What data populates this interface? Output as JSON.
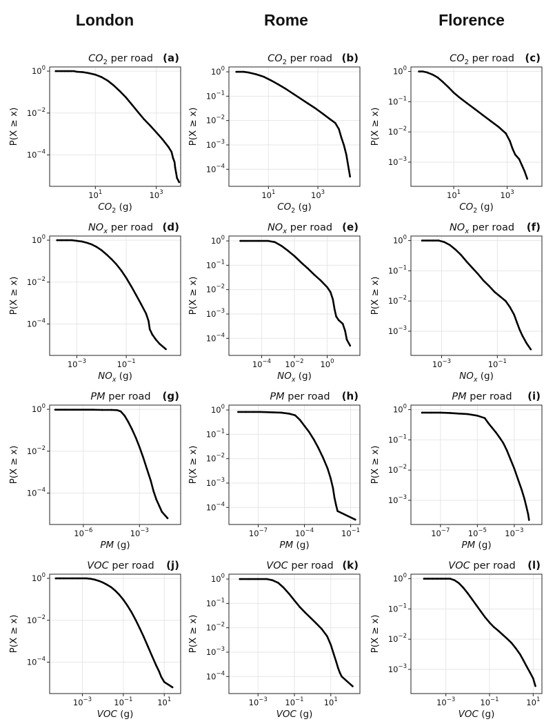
{
  "figure": {
    "columns": [
      "London",
      "Rome",
      "Florence"
    ],
    "ylabel": "P(X ≥ x)",
    "title_suffix": "per road",
    "unit": "(g)"
  },
  "chart_data": [
    {
      "panel": "a",
      "city": "London",
      "pollutant": "CO2",
      "type": "scatter",
      "xlog": [
        -0.5,
        3.8
      ],
      "ylog": [
        -5.5,
        0.2
      ],
      "xticks": [
        1,
        3
      ],
      "yticks": [
        0,
        -2,
        -4
      ],
      "points": [
        [
          -0.3,
          0
        ],
        [
          -0.1,
          0
        ],
        [
          0,
          0
        ],
        [
          0.1,
          0
        ],
        [
          0.2,
          0
        ],
        [
          0.3,
          0
        ],
        [
          0.4,
          -0.03
        ],
        [
          0.6,
          -0.05
        ],
        [
          0.8,
          -0.1
        ],
        [
          1.0,
          -0.17
        ],
        [
          1.2,
          -0.28
        ],
        [
          1.4,
          -0.45
        ],
        [
          1.6,
          -0.68
        ],
        [
          1.8,
          -0.95
        ],
        [
          2.0,
          -1.25
        ],
        [
          2.2,
          -1.6
        ],
        [
          2.4,
          -1.95
        ],
        [
          2.6,
          -2.3
        ],
        [
          2.8,
          -2.6
        ],
        [
          3.0,
          -2.92
        ],
        [
          3.2,
          -3.25
        ],
        [
          3.4,
          -3.62
        ],
        [
          3.5,
          -3.85
        ],
        [
          3.55,
          -4.15
        ],
        [
          3.6,
          -4.35
        ],
        [
          3.62,
          -4.6
        ],
        [
          3.65,
          -4.85
        ],
        [
          3.68,
          -5.1
        ],
        [
          3.75,
          -5.3
        ]
      ]
    },
    {
      "panel": "b",
      "city": "Rome",
      "pollutant": "CO2",
      "type": "scatter",
      "xlog": [
        -0.6,
        4.7
      ],
      "ylog": [
        -4.7,
        0.2
      ],
      "xticks": [
        1,
        3
      ],
      "yticks": [
        0,
        -1,
        -2,
        -3,
        -4
      ],
      "points": [
        [
          -0.3,
          0
        ],
        [
          0,
          0
        ],
        [
          0.2,
          -0.03
        ],
        [
          0.5,
          -0.1
        ],
        [
          0.8,
          -0.2
        ],
        [
          1.1,
          -0.35
        ],
        [
          1.4,
          -0.52
        ],
        [
          1.7,
          -0.7
        ],
        [
          2.0,
          -0.9
        ],
        [
          2.3,
          -1.1
        ],
        [
          2.6,
          -1.3
        ],
        [
          2.9,
          -1.5
        ],
        [
          3.2,
          -1.72
        ],
        [
          3.5,
          -1.95
        ],
        [
          3.7,
          -2.1
        ],
        [
          3.85,
          -2.35
        ],
        [
          3.95,
          -2.7
        ],
        [
          4.05,
          -3.0
        ],
        [
          4.1,
          -3.2
        ],
        [
          4.15,
          -3.4
        ],
        [
          4.2,
          -3.7
        ],
        [
          4.25,
          -4.0
        ],
        [
          4.3,
          -4.3
        ]
      ]
    },
    {
      "panel": "c",
      "city": "Florence",
      "pollutant": "CO2",
      "type": "scatter",
      "xlog": [
        -0.6,
        4.3
      ],
      "ylog": [
        -3.8,
        0.15
      ],
      "xticks": [
        1,
        3
      ],
      "yticks": [
        0,
        -1,
        -2,
        -3
      ],
      "points": [
        [
          -0.3,
          0
        ],
        [
          -0.15,
          0
        ],
        [
          0,
          -0.03
        ],
        [
          0.2,
          -0.1
        ],
        [
          0.4,
          -0.2
        ],
        [
          0.6,
          -0.35
        ],
        [
          0.8,
          -0.52
        ],
        [
          1.0,
          -0.7
        ],
        [
          1.2,
          -0.85
        ],
        [
          1.5,
          -1.05
        ],
        [
          1.8,
          -1.25
        ],
        [
          2.1,
          -1.45
        ],
        [
          2.4,
          -1.65
        ],
        [
          2.7,
          -1.85
        ],
        [
          2.95,
          -2.05
        ],
        [
          3.1,
          -2.3
        ],
        [
          3.2,
          -2.55
        ],
        [
          3.3,
          -2.75
        ],
        [
          3.45,
          -2.9
        ],
        [
          3.55,
          -3.1
        ],
        [
          3.65,
          -3.3
        ],
        [
          3.75,
          -3.55
        ]
      ]
    },
    {
      "panel": "d",
      "city": "London",
      "pollutant": "NOx",
      "type": "scatter",
      "xlog": [
        -4.1,
        1.2
      ],
      "ylog": [
        -5.5,
        0.2
      ],
      "xticks": [
        -3,
        -1
      ],
      "yticks": [
        0,
        -2,
        -4
      ],
      "points": [
        [
          -3.8,
          0
        ],
        [
          -3.6,
          0
        ],
        [
          -3.4,
          0
        ],
        [
          -3.2,
          0
        ],
        [
          -3.0,
          -0.03
        ],
        [
          -2.8,
          -0.06
        ],
        [
          -2.6,
          -0.12
        ],
        [
          -2.4,
          -0.2
        ],
        [
          -2.2,
          -0.32
        ],
        [
          -2.0,
          -0.48
        ],
        [
          -1.8,
          -0.68
        ],
        [
          -1.6,
          -0.9
        ],
        [
          -1.4,
          -1.15
        ],
        [
          -1.2,
          -1.45
        ],
        [
          -1.0,
          -1.8
        ],
        [
          -0.8,
          -2.2
        ],
        [
          -0.6,
          -2.62
        ],
        [
          -0.4,
          -3.05
        ],
        [
          -0.2,
          -3.5
        ],
        [
          -0.1,
          -3.85
        ],
        [
          -0.05,
          -4.25
        ],
        [
          0.05,
          -4.5
        ],
        [
          0.2,
          -4.75
        ],
        [
          0.35,
          -4.95
        ],
        [
          0.6,
          -5.2
        ]
      ]
    },
    {
      "panel": "e",
      "city": "Rome",
      "pollutant": "NOx",
      "type": "scatter",
      "xlog": [
        -6.0,
        2.0
      ],
      "ylog": [
        -4.7,
        0.2
      ],
      "xticks": [
        -4,
        -2,
        0
      ],
      "yticks": [
        0,
        -1,
        -2,
        -3,
        -4
      ],
      "points": [
        [
          -5.3,
          0
        ],
        [
          -4.2,
          0
        ],
        [
          -3.6,
          0
        ],
        [
          -3.2,
          -0.05
        ],
        [
          -2.8,
          -0.2
        ],
        [
          -2.4,
          -0.4
        ],
        [
          -2.0,
          -0.62
        ],
        [
          -1.6,
          -0.88
        ],
        [
          -1.2,
          -1.12
        ],
        [
          -0.8,
          -1.38
        ],
        [
          -0.4,
          -1.62
        ],
        [
          0.0,
          -1.9
        ],
        [
          0.2,
          -2.1
        ],
        [
          0.35,
          -2.4
        ],
        [
          0.45,
          -2.8
        ],
        [
          0.55,
          -3.1
        ],
        [
          0.7,
          -3.25
        ],
        [
          0.95,
          -3.4
        ],
        [
          1.1,
          -3.7
        ],
        [
          1.2,
          -4.05
        ],
        [
          1.4,
          -4.3
        ]
      ]
    },
    {
      "panel": "f",
      "city": "Florence",
      "pollutant": "NOx",
      "type": "scatter",
      "xlog": [
        -4.1,
        0.6
      ],
      "ylog": [
        -3.8,
        0.15
      ],
      "xticks": [
        -3,
        -1
      ],
      "yticks": [
        0,
        -1,
        -2,
        -3
      ],
      "points": [
        [
          -3.7,
          0
        ],
        [
          -3.5,
          0
        ],
        [
          -3.3,
          0
        ],
        [
          -3.1,
          0
        ],
        [
          -2.9,
          -0.05
        ],
        [
          -2.7,
          -0.15
        ],
        [
          -2.5,
          -0.3
        ],
        [
          -2.3,
          -0.48
        ],
        [
          -2.1,
          -0.7
        ],
        [
          -1.9,
          -0.9
        ],
        [
          -1.7,
          -1.1
        ],
        [
          -1.5,
          -1.32
        ],
        [
          -1.3,
          -1.5
        ],
        [
          -1.1,
          -1.7
        ],
        [
          -0.9,
          -1.85
        ],
        [
          -0.7,
          -2.0
        ],
        [
          -0.55,
          -2.2
        ],
        [
          -0.4,
          -2.45
        ],
        [
          -0.3,
          -2.7
        ],
        [
          -0.2,
          -2.95
        ],
        [
          -0.1,
          -3.15
        ],
        [
          0.05,
          -3.4
        ],
        [
          0.2,
          -3.6
        ]
      ]
    },
    {
      "panel": "g",
      "city": "London",
      "pollutant": "PM",
      "type": "scatter",
      "xlog": [
        -7.8,
        -0.8
      ],
      "ylog": [
        -5.5,
        0.2
      ],
      "xticks": [
        -6,
        -3
      ],
      "yticks": [
        0,
        -2,
        -4
      ],
      "points": [
        [
          -7.5,
          -0.02
        ],
        [
          -7.0,
          -0.02
        ],
        [
          -6.5,
          -0.02
        ],
        [
          -6.0,
          -0.02
        ],
        [
          -5.5,
          -0.02
        ],
        [
          -5.0,
          -0.03
        ],
        [
          -4.5,
          -0.03
        ],
        [
          -4.2,
          -0.04
        ],
        [
          -4.0,
          -0.1
        ],
        [
          -3.8,
          -0.3
        ],
        [
          -3.6,
          -0.6
        ],
        [
          -3.4,
          -0.95
        ],
        [
          -3.2,
          -1.35
        ],
        [
          -3.0,
          -1.8
        ],
        [
          -2.8,
          -2.3
        ],
        [
          -2.6,
          -2.85
        ],
        [
          -2.4,
          -3.4
        ],
        [
          -2.25,
          -3.9
        ],
        [
          -2.1,
          -4.3
        ],
        [
          -1.95,
          -4.6
        ],
        [
          -1.8,
          -4.9
        ],
        [
          -1.5,
          -5.2
        ]
      ]
    },
    {
      "panel": "h",
      "city": "Rome",
      "pollutant": "PM",
      "type": "scatter",
      "xlog": [
        -8.9,
        -0.4
      ],
      "ylog": [
        -4.7,
        0.2
      ],
      "xticks": [
        -7,
        -4,
        -1
      ],
      "yticks": [
        0,
        -1,
        -2,
        -3,
        -4
      ],
      "points": [
        [
          -8.3,
          -0.08
        ],
        [
          -7.8,
          -0.08
        ],
        [
          -7.3,
          -0.08
        ],
        [
          -6.9,
          -0.08
        ],
        [
          -6.5,
          -0.09
        ],
        [
          -6.0,
          -0.1
        ],
        [
          -5.5,
          -0.11
        ],
        [
          -5.0,
          -0.15
        ],
        [
          -4.6,
          -0.22
        ],
        [
          -4.3,
          -0.4
        ],
        [
          -4.0,
          -0.65
        ],
        [
          -3.7,
          -0.9
        ],
        [
          -3.4,
          -1.2
        ],
        [
          -3.1,
          -1.55
        ],
        [
          -2.8,
          -1.95
        ],
        [
          -2.5,
          -2.4
        ],
        [
          -2.3,
          -2.8
        ],
        [
          -2.15,
          -3.2
        ],
        [
          -2.05,
          -3.6
        ],
        [
          -1.95,
          -3.9
        ],
        [
          -1.85,
          -4.15
        ],
        [
          -0.7,
          -4.5
        ]
      ]
    },
    {
      "panel": "i",
      "city": "Florence",
      "pollutant": "PM",
      "type": "scatter",
      "xlog": [
        -8.6,
        -1.5
      ],
      "ylog": [
        -3.8,
        0.15
      ],
      "xticks": [
        -7,
        -5,
        -3
      ],
      "yticks": [
        0,
        -1,
        -2,
        -3
      ],
      "points": [
        [
          -8.0,
          -0.1
        ],
        [
          -7.5,
          -0.1
        ],
        [
          -7.0,
          -0.1
        ],
        [
          -6.5,
          -0.11
        ],
        [
          -6.0,
          -0.13
        ],
        [
          -5.5,
          -0.15
        ],
        [
          -5.0,
          -0.2
        ],
        [
          -4.6,
          -0.28
        ],
        [
          -4.4,
          -0.45
        ],
        [
          -4.2,
          -0.6
        ],
        [
          -4.0,
          -0.75
        ],
        [
          -3.8,
          -0.92
        ],
        [
          -3.6,
          -1.1
        ],
        [
          -3.4,
          -1.35
        ],
        [
          -3.2,
          -1.65
        ],
        [
          -3.0,
          -1.95
        ],
        [
          -2.8,
          -2.3
        ],
        [
          -2.6,
          -2.65
        ],
        [
          -2.45,
          -2.95
        ],
        [
          -2.35,
          -3.2
        ],
        [
          -2.25,
          -3.45
        ],
        [
          -2.2,
          -3.65
        ]
      ]
    },
    {
      "panel": "j",
      "city": "London",
      "pollutant": "VOC",
      "type": "scatter",
      "xlog": [
        -4.6,
        1.8
      ],
      "ylog": [
        -5.5,
        0.2
      ],
      "xticks": [
        -3,
        -1,
        1
      ],
      "yticks": [
        0,
        -2,
        -4
      ],
      "points": [
        [
          -4.3,
          0
        ],
        [
          -4.1,
          0
        ],
        [
          -3.9,
          0
        ],
        [
          -3.5,
          0
        ],
        [
          -3.2,
          0
        ],
        [
          -2.8,
          0
        ],
        [
          -2.6,
          -0.02
        ],
        [
          -2.4,
          -0.06
        ],
        [
          -2.2,
          -0.12
        ],
        [
          -2.0,
          -0.2
        ],
        [
          -1.8,
          -0.3
        ],
        [
          -1.6,
          -0.42
        ],
        [
          -1.4,
          -0.58
        ],
        [
          -1.2,
          -0.78
        ],
        [
          -1.0,
          -1.02
        ],
        [
          -0.8,
          -1.3
        ],
        [
          -0.6,
          -1.62
        ],
        [
          -0.4,
          -1.98
        ],
        [
          -0.2,
          -2.38
        ],
        [
          0.0,
          -2.8
        ],
        [
          0.2,
          -3.25
        ],
        [
          0.4,
          -3.7
        ],
        [
          0.6,
          -4.15
        ],
        [
          0.75,
          -4.45
        ],
        [
          0.85,
          -4.7
        ],
        [
          1.0,
          -4.95
        ],
        [
          1.4,
          -5.2
        ]
      ]
    },
    {
      "panel": "k",
      "city": "Rome",
      "pollutant": "VOC",
      "type": "scatter",
      "xlog": [
        -4.6,
        2.6
      ],
      "ylog": [
        -4.7,
        0.2
      ],
      "xticks": [
        -3,
        -1,
        1
      ],
      "yticks": [
        0,
        -1,
        -2,
        -3,
        -4
      ],
      "points": [
        [
          -4.0,
          0
        ],
        [
          -3.5,
          0
        ],
        [
          -3.0,
          0
        ],
        [
          -2.5,
          0
        ],
        [
          -2.2,
          -0.05
        ],
        [
          -1.9,
          -0.15
        ],
        [
          -1.6,
          -0.35
        ],
        [
          -1.3,
          -0.6
        ],
        [
          -1.0,
          -0.88
        ],
        [
          -0.7,
          -1.15
        ],
        [
          -0.4,
          -1.38
        ],
        [
          -0.1,
          -1.6
        ],
        [
          0.2,
          -1.82
        ],
        [
          0.5,
          -2.05
        ],
        [
          0.8,
          -2.35
        ],
        [
          1.0,
          -2.7
        ],
        [
          1.15,
          -3.05
        ],
        [
          1.3,
          -3.4
        ],
        [
          1.4,
          -3.65
        ],
        [
          1.5,
          -3.85
        ],
        [
          1.6,
          -4.0
        ],
        [
          2.2,
          -4.4
        ]
      ]
    },
    {
      "panel": "l",
      "city": "Florence",
      "pollutant": "VOC",
      "type": "scatter",
      "xlog": [
        -4.6,
        1.4
      ],
      "ylog": [
        -3.8,
        0.15
      ],
      "xticks": [
        -3,
        -1,
        1
      ],
      "yticks": [
        0,
        -1,
        -2,
        -3
      ],
      "points": [
        [
          -4.0,
          0
        ],
        [
          -3.8,
          0
        ],
        [
          -3.6,
          0
        ],
        [
          -3.4,
          0
        ],
        [
          -3.2,
          0
        ],
        [
          -3.0,
          0
        ],
        [
          -2.8,
          0
        ],
        [
          -2.6,
          -0.05
        ],
        [
          -2.4,
          -0.15
        ],
        [
          -2.2,
          -0.3
        ],
        [
          -2.0,
          -0.48
        ],
        [
          -1.8,
          -0.68
        ],
        [
          -1.6,
          -0.88
        ],
        [
          -1.4,
          -1.08
        ],
        [
          -1.2,
          -1.28
        ],
        [
          -1.0,
          -1.45
        ],
        [
          -0.8,
          -1.6
        ],
        [
          -0.6,
          -1.72
        ],
        [
          -0.4,
          -1.85
        ],
        [
          -0.2,
          -1.98
        ],
        [
          0.0,
          -2.12
        ],
        [
          0.2,
          -2.3
        ],
        [
          0.4,
          -2.5
        ],
        [
          0.55,
          -2.7
        ],
        [
          0.7,
          -2.9
        ],
        [
          0.85,
          -3.1
        ],
        [
          1.0,
          -3.3
        ],
        [
          1.1,
          -3.55
        ]
      ]
    }
  ]
}
